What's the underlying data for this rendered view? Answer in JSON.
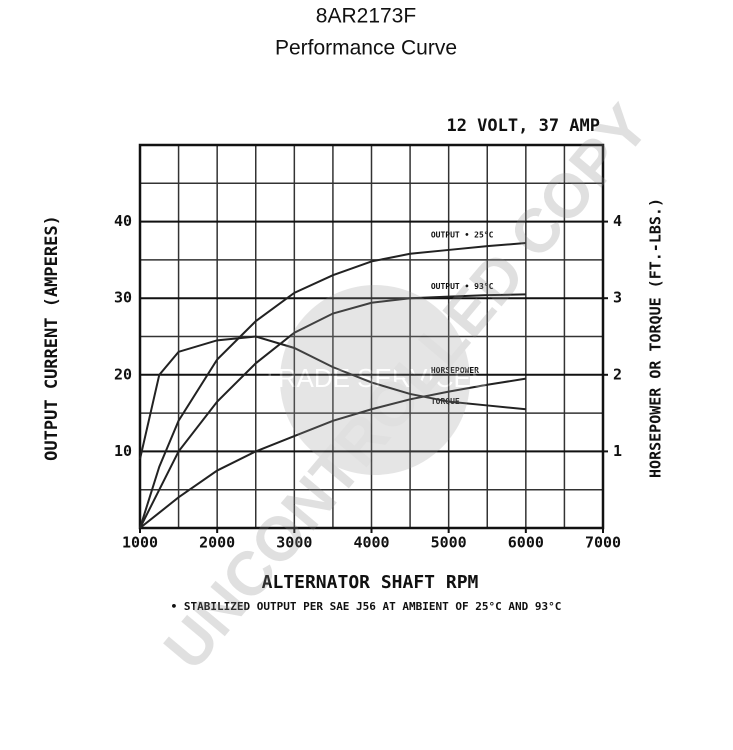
{
  "chart_data": {
    "type": "line",
    "title": "8AR2173F",
    "subtitle": "Performance Curve",
    "rating": "12 VOLT, 37 AMP",
    "x_label": "ALTERNATOR SHAFT RPM",
    "y_label": "OUTPUT CURRENT (AMPERES)",
    "y2_label": "HORSEPOWER OR TORQUE (FT.-LBS.)",
    "footnote": "• STABILIZED OUTPUT PER SAE J56 AT AMBIENT OF 25°C AND 93°C",
    "watermark": "UNCONTROLLED COPY",
    "logo_text": "TRADE SERVICES",
    "x": [
      1000,
      1250,
      1500,
      2000,
      2500,
      3000,
      3500,
      4000,
      4500,
      5000,
      5500,
      6000
    ],
    "series": [
      {
        "name": "OUTPUT • 25°C",
        "color": "#222222",
        "values": [
          0,
          8,
          14,
          22,
          27,
          30.7,
          33,
          34.8,
          35.8,
          36.3,
          36.8,
          37.2
        ]
      },
      {
        "name": "OUTPUT • 93°C",
        "color": "#222222",
        "values": [
          0,
          5,
          10,
          16.5,
          21.5,
          25.5,
          28,
          29.4,
          30,
          30.2,
          30.4,
          30.5
        ]
      },
      {
        "name": "HORSEPOWER",
        "color": "#222222",
        "axis": "y2",
        "values": [
          0,
          0.2,
          0.4,
          0.75,
          1,
          1.2,
          1.4,
          1.55,
          1.68,
          1.78,
          1.87,
          1.95
        ]
      },
      {
        "name": "TORQUE",
        "color": "#222222",
        "axis": "y2",
        "values": [
          0.9,
          2.0,
          2.3,
          2.45,
          2.5,
          2.35,
          2.1,
          1.9,
          1.75,
          1.65,
          1.6,
          1.55
        ]
      }
    ],
    "xlim": [
      1000,
      7000
    ],
    "xticks": [
      1000,
      2000,
      3000,
      4000,
      5000,
      6000,
      7000
    ],
    "ylim": [
      0,
      50
    ],
    "yticks": [
      10,
      20,
      30,
      40
    ],
    "y2lim": [
      0,
      5
    ],
    "y2ticks": [
      1,
      2,
      3,
      4
    ],
    "grid": true
  }
}
